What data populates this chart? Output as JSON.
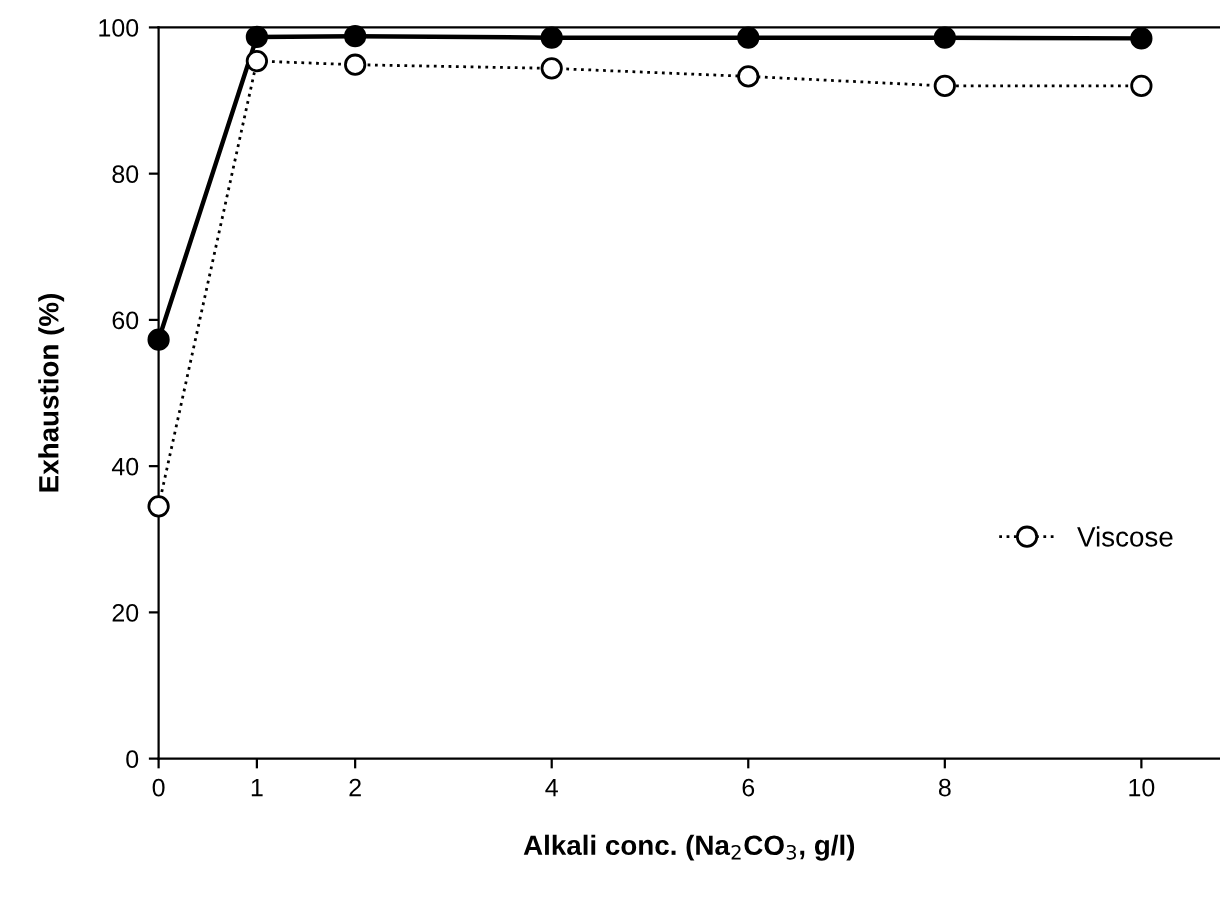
{
  "chart_data": {
    "type": "line",
    "xlabel": "Alkali conc. (Na$_{2}$CO$_{3}$, g/l)",
    "ylabel": "Exhaustion (%)",
    "x": [
      0,
      1,
      2,
      4,
      6,
      8,
      10
    ],
    "series": [
      {
        "color": "#000000",
        "values": [
          57.3,
          98.7,
          98.8,
          98.6,
          98.6,
          98.6,
          98.5
        ],
        "marker": "circle",
        "line_style": "solid"
      },
      {
        "name": "Viscose",
        "color": "#000000",
        "values": [
          34.5,
          95.4,
          94.9,
          94.4,
          93.3,
          92.0,
          92.0
        ],
        "marker": "circle",
        "line_style": "dotted"
      }
    ],
    "xlim": [
      0,
      10.8
    ],
    "ylim": [
      0,
      100
    ],
    "xticks": [
      0,
      1,
      2,
      4,
      6,
      8,
      10
    ],
    "yticks": [
      0,
      20,
      40,
      60,
      80,
      100
    ],
    "grid": false,
    "legend": "right"
  }
}
